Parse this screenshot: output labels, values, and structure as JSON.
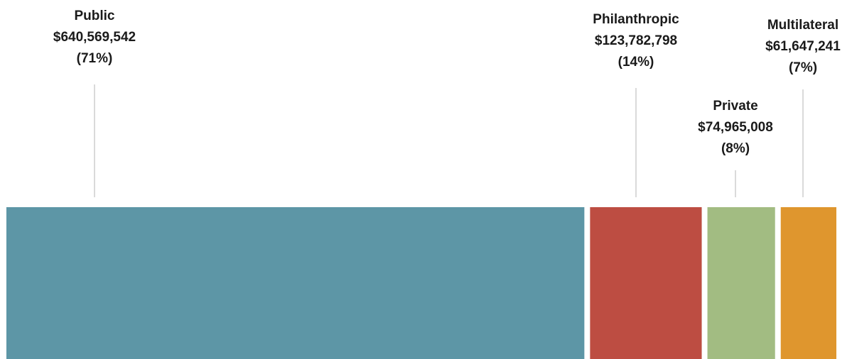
{
  "chart_data": {
    "type": "bar",
    "orientation": "horizontal-stacked",
    "title": "",
    "xlabel": "",
    "ylabel": "",
    "grid": false,
    "legend": "none",
    "categories": [
      "Public",
      "Philanthropic",
      "Private",
      "Multilateral"
    ],
    "values": [
      640569542,
      123782798,
      74965008,
      61647241
    ],
    "value_labels": [
      "$640,569,542",
      "$123,782,798",
      "$74,965,008",
      "$61,647,241"
    ],
    "percent_labels": [
      "(71%)",
      "(14%)",
      "(8%)",
      "(7%)"
    ],
    "colors": [
      "#5d96a6",
      "#bd4d42",
      "#a2bc82",
      "#df962e"
    ]
  }
}
